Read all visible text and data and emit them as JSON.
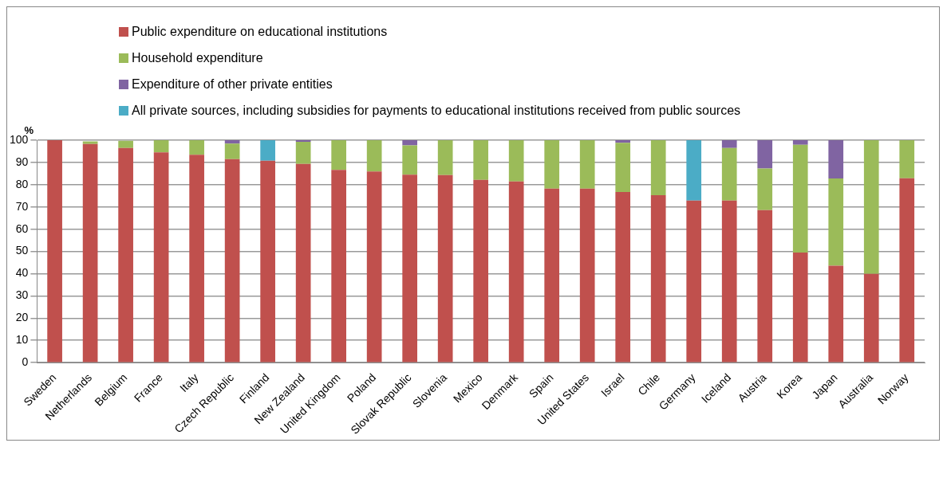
{
  "chart_data": {
    "type": "bar",
    "stacked": true,
    "ylabel": "%",
    "categories": [
      "Sweden",
      "Netherlands",
      "Belgium",
      "France",
      "Italy",
      "Czech Republic",
      "Finland",
      "New Zealand",
      "United Kingdom",
      "Poland",
      "Slovak Republic",
      "Slovenia",
      "Mexico",
      "Denmark",
      "Spain",
      "United States",
      "Israel",
      "Chile",
      "Germany",
      "Iceland",
      "Austria",
      "Korea",
      "Japan",
      "Australia",
      "Norway"
    ],
    "series": [
      {
        "name": "Public expenditure on educational institutions",
        "color": "#c0504d",
        "values": [
          100,
          98.3,
          96.5,
          94.5,
          93.5,
          91.5,
          90.8,
          89.3,
          86.7,
          85.9,
          84.5,
          84.3,
          82.2,
          81.5,
          78.2,
          78.2,
          76.7,
          75.3,
          72.9,
          72.9,
          68.6,
          49.5,
          43.6,
          39.9,
          82.9
        ]
      },
      {
        "name": "Household expenditure",
        "color": "#9bbb59",
        "values": [
          0,
          1.2,
          3.2,
          5.5,
          6.5,
          7,
          null,
          10,
          13.3,
          14.1,
          13.2,
          15.7,
          17.8,
          18.5,
          21.8,
          21.8,
          22.1,
          24.7,
          null,
          23.6,
          18.7,
          48.4,
          39.2,
          60.1,
          17.1
        ]
      },
      {
        "name": "Expenditure of other private entities",
        "color": "#8064a2",
        "values": [
          0,
          null,
          null,
          0,
          0,
          1.5,
          null,
          0.7,
          0,
          0,
          2.3,
          0,
          0,
          0,
          0,
          0,
          1.2,
          0,
          null,
          3.5,
          12.7,
          2.1,
          17.2,
          0,
          0
        ]
      },
      {
        "name": "All private sources, including subsidies for payments to educational institutions received from public sources",
        "color": "#4bacc6",
        "values": [
          null,
          null,
          null,
          null,
          null,
          null,
          9.2,
          null,
          null,
          null,
          null,
          null,
          null,
          null,
          null,
          null,
          null,
          null,
          27.1,
          null,
          null,
          null,
          null,
          null,
          null
        ]
      }
    ],
    "ylim": [
      0,
      100
    ],
    "yticks": [
      0,
      10,
      20,
      30,
      40,
      50,
      60,
      70,
      80,
      90,
      100
    ],
    "grid": "y",
    "legend": "top left"
  }
}
